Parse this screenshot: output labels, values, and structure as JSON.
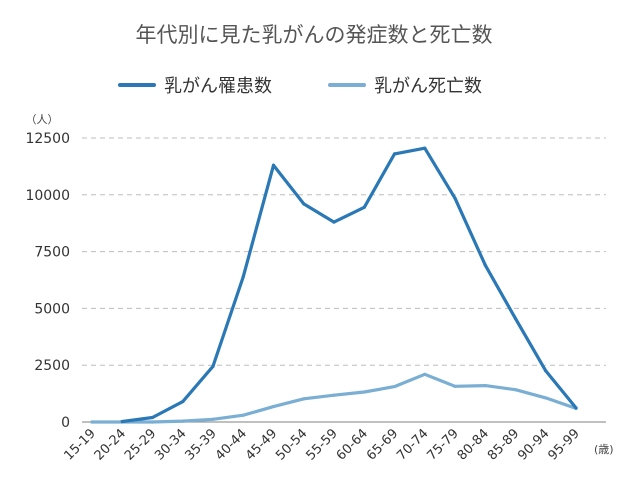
{
  "chart_data": {
    "type": "line",
    "title": "年代別に見た乳がんの発症数と死亡数",
    "ylabel": "（人）",
    "xlabel": "(歳)",
    "ylim": [
      0,
      12500
    ],
    "yticks": [
      "0",
      "2500",
      "5000",
      "7500",
      "10000",
      "12500"
    ],
    "grid": true,
    "legend_position": "top",
    "categories": [
      "15-19",
      "20-24",
      "25-29",
      "30-34",
      "35-39",
      "40-44",
      "45-49",
      "50-54",
      "55-59",
      "60-64",
      "65-69",
      "70-74",
      "75-79",
      "80-84",
      "85-89",
      "90-94",
      "95-99"
    ],
    "series": [
      {
        "name": "乳がん罹患数",
        "color": "#2a78b5",
        "values": [
          null,
          20,
          200,
          900,
          2450,
          6400,
          11300,
          9600,
          8800,
          9450,
          11800,
          12050,
          9850,
          6900,
          4550,
          2250,
          620
        ]
      },
      {
        "name": "乳がん死亡数",
        "color": "#7aaed3",
        "values": [
          0,
          0,
          0,
          40,
          120,
          300,
          680,
          1020,
          1180,
          1320,
          1560,
          2100,
          1570,
          1600,
          1420,
          1060,
          600
        ]
      }
    ]
  }
}
